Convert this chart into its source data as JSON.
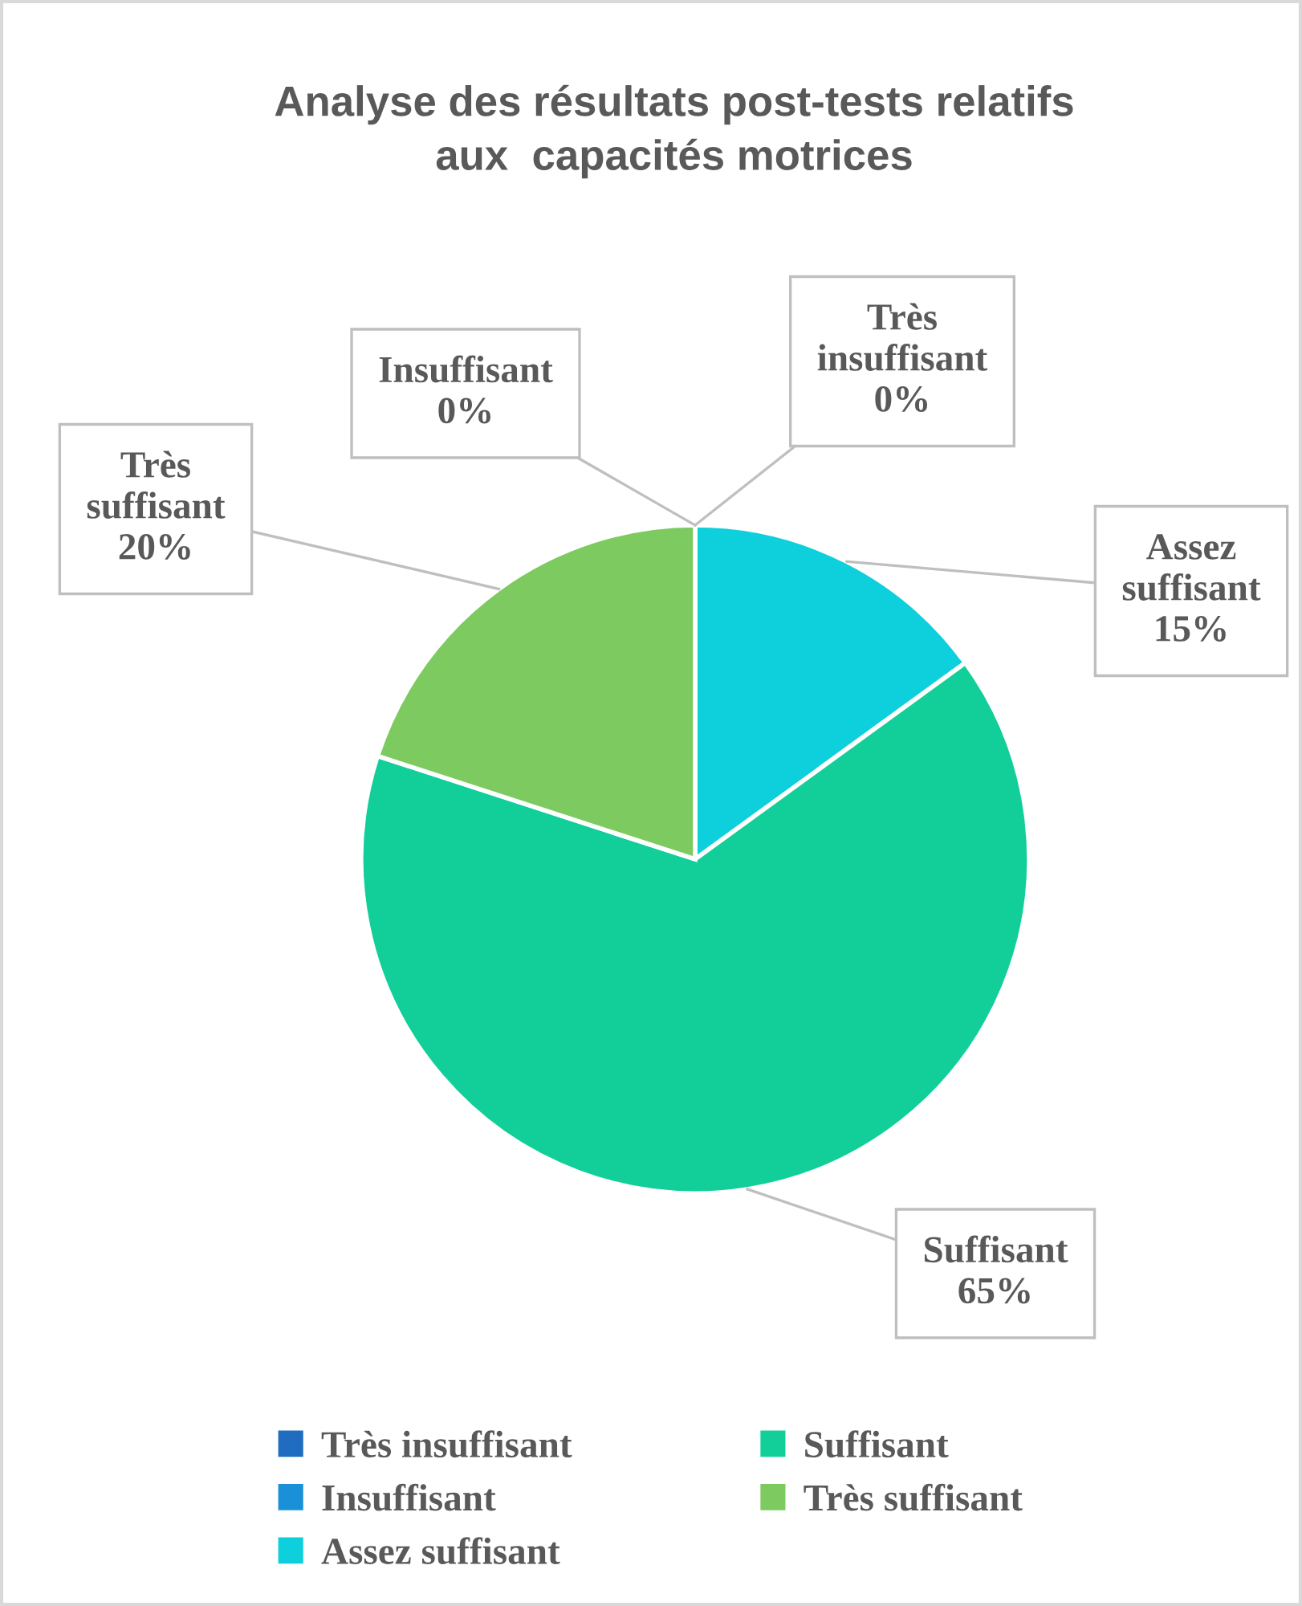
{
  "chart_data": {
    "type": "pie",
    "title": "Analyse des résultats post-tests relatifs\naux  capacités motrices",
    "categories": [
      "Très insuffisant",
      "Insuffisant",
      "Assez suffisant",
      "Suffisant",
      "Très suffisant"
    ],
    "values": [
      0,
      0,
      15,
      65,
      20
    ],
    "value_labels": [
      "0%",
      "0%",
      "15%",
      "65%",
      "20%"
    ],
    "colors": [
      "#1f6cc0",
      "#1a90d8",
      "#0ecfdc",
      "#12cf9a",
      "#7dca60"
    ],
    "legend": "bottom"
  }
}
